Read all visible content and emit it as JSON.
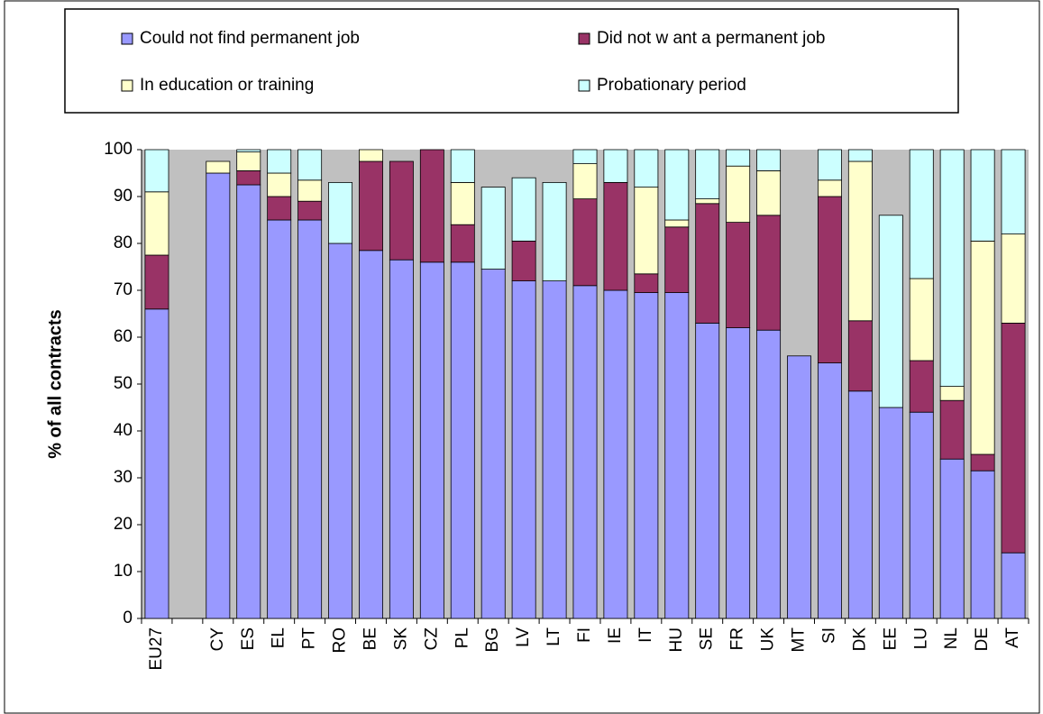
{
  "chart_data": {
    "type": "stacked_bar",
    "ylabel": "% of all contracts",
    "categories": [
      "EU27",
      null,
      "CY",
      "ES",
      "EL",
      "PT",
      "RO",
      "BE",
      "SK",
      "CZ",
      "PL",
      "BG",
      "LV",
      "LT",
      "FI",
      "IE",
      "IT",
      "HU",
      "SE",
      "FR",
      "UK",
      "MT",
      "SI",
      "DK",
      "EE",
      "LU",
      "NL",
      "DE",
      "AT"
    ],
    "series": [
      {
        "name": "Could not find permanent job",
        "color": "#9999ff",
        "values": [
          66,
          null,
          95,
          92.5,
          85,
          85,
          80,
          78.5,
          76.5,
          76,
          76,
          74.5,
          72,
          72,
          71,
          70,
          69.5,
          69.5,
          63,
          62,
          61.5,
          56,
          54.5,
          48.5,
          45,
          44,
          34,
          31.5,
          14
        ]
      },
      {
        "name": "Did not w ant a permanent job",
        "color": "#993366",
        "values": [
          11.5,
          null,
          0,
          3,
          5,
          4,
          0,
          19,
          21,
          24,
          8,
          0,
          8.5,
          0,
          18.5,
          23,
          4,
          14,
          25.5,
          22.5,
          24.5,
          0,
          35.5,
          15,
          0,
          11,
          12.5,
          3.5,
          49
        ]
      },
      {
        "name": "In education or training",
        "color": "#ffffcc",
        "values": [
          13.5,
          null,
          2.5,
          4,
          5,
          4.5,
          0,
          2.5,
          0,
          0,
          9,
          0,
          0,
          0,
          7.5,
          0,
          18.5,
          1.5,
          1,
          12,
          9.5,
          0,
          3.5,
          34,
          0,
          17.5,
          3,
          45.5,
          19
        ]
      },
      {
        "name": "Probationary period",
        "color": "#ccffff",
        "values": [
          9,
          null,
          0,
          0.5,
          5,
          6.5,
          13,
          0,
          0,
          0,
          7,
          17.5,
          13.5,
          21,
          3,
          7,
          8,
          15,
          10.5,
          3.5,
          4.5,
          0,
          6.5,
          2.5,
          41,
          27.5,
          50.5,
          19.5,
          18
        ]
      }
    ],
    "ylim": [
      0,
      100
    ],
    "yticks": [
      0,
      10,
      20,
      30,
      40,
      50,
      60,
      70,
      80,
      90,
      100
    ],
    "plot_background": "#c0c0c0",
    "grid": false
  }
}
